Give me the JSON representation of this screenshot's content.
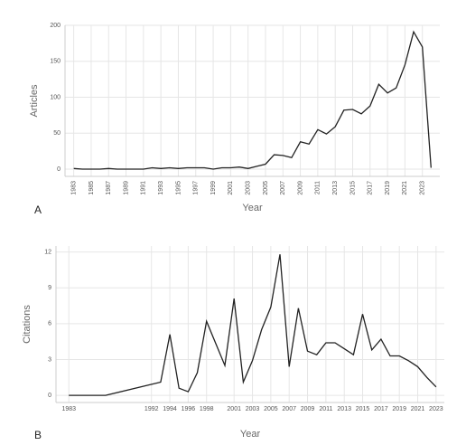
{
  "chart_data": [
    {
      "type": "line",
      "panel_label": "A",
      "xlabel": "Year",
      "ylabel": "Articles",
      "color": "#222222",
      "grid": true,
      "x": [
        1983,
        1984,
        1985,
        1986,
        1987,
        1988,
        1989,
        1990,
        1991,
        1992,
        1993,
        1994,
        1995,
        1996,
        1997,
        1998,
        1999,
        2000,
        2001,
        2002,
        2003,
        2004,
        2005,
        2006,
        2007,
        2008,
        2009,
        2010,
        2011,
        2012,
        2013,
        2014,
        2015,
        2016,
        2017,
        2018,
        2019,
        2020,
        2021,
        2022,
        2023,
        2024
      ],
      "values": [
        1,
        0,
        0,
        0,
        1,
        0,
        0,
        0,
        0,
        2,
        1,
        2,
        1,
        2,
        2,
        2,
        0,
        2,
        2,
        3,
        1,
        4,
        7,
        20,
        19,
        16,
        38,
        35,
        55,
        49,
        59,
        82,
        83,
        77,
        88,
        118,
        106,
        113,
        145,
        191,
        170,
        2
      ],
      "xlim": [
        1982,
        2025
      ],
      "xticks": [
        1983,
        1985,
        1987,
        1989,
        1991,
        1993,
        1995,
        1997,
        1999,
        2001,
        2003,
        2005,
        2007,
        2009,
        2011,
        2013,
        2015,
        2017,
        2019,
        2021,
        2023
      ],
      "ylim": [
        -10,
        200
      ],
      "yticks": [
        0,
        50,
        100,
        150,
        200
      ]
    },
    {
      "type": "line",
      "panel_label": "B",
      "xlabel": "Year",
      "ylabel": "Citations",
      "color": "#222222",
      "grid": true,
      "x": [
        1983,
        1987,
        1993,
        1994,
        1995,
        1996,
        1997,
        1998,
        2000,
        2001,
        2002,
        2003,
        2004,
        2005,
        2006,
        2007,
        2008,
        2009,
        2010,
        2011,
        2012,
        2013,
        2014,
        2015,
        2016,
        2017,
        2018,
        2019,
        2020,
        2021,
        2022,
        2023
      ],
      "values": [
        0,
        0,
        1.1,
        5.1,
        0.6,
        0.3,
        1.9,
        6.2,
        2.5,
        8.1,
        1.1,
        2.9,
        5.5,
        7.4,
        11.8,
        2.4,
        7.3,
        3.7,
        3.4,
        4.4,
        4.4,
        3.9,
        3.4,
        6.8,
        3.8,
        4.7,
        3.3,
        3.3,
        2.9,
        2.4,
        1.5,
        0.7
      ],
      "xlim": [
        1981.6,
        2023.9
      ],
      "xticks": [
        1983,
        1992,
        1994,
        1996,
        1998,
        2001,
        2003,
        2005,
        2007,
        2009,
        2011,
        2013,
        2015,
        2017,
        2019,
        2021,
        2023
      ],
      "ylim": [
        -0.6,
        12.5
      ],
      "yticks": [
        0,
        3,
        6,
        9,
        12
      ]
    }
  ]
}
